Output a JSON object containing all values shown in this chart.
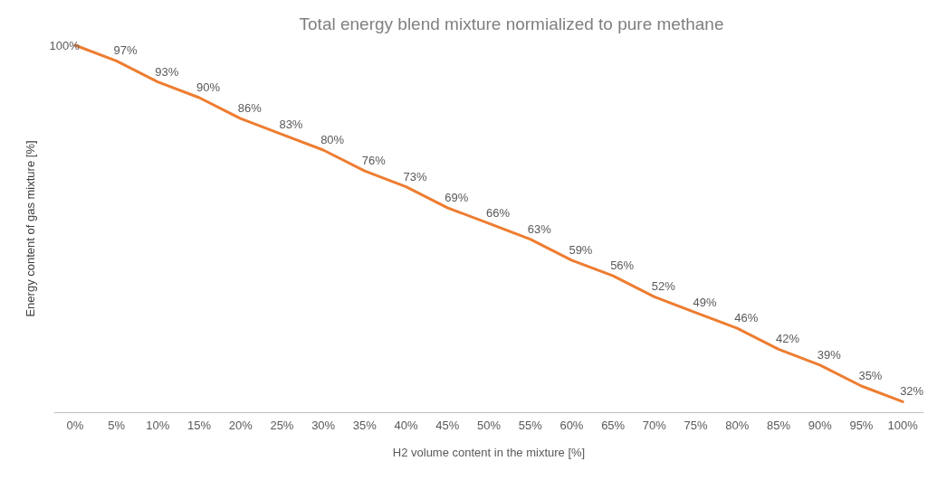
{
  "chart_data": {
    "type": "line",
    "title": "Total energy blend mixture normialized to pure methane",
    "xlabel": "H2 volume content in the mixture [%]",
    "ylabel": "Energy content of gas mixture [%]",
    "categories": [
      "0%",
      "5%",
      "10%",
      "15%",
      "20%",
      "25%",
      "30%",
      "35%",
      "40%",
      "45%",
      "50%",
      "55%",
      "60%",
      "65%",
      "70%",
      "75%",
      "80%",
      "85%",
      "90%",
      "95%",
      "100%"
    ],
    "series": [
      {
        "color": "#ed7d31",
        "values": [
          100,
          97,
          93,
          90,
          86,
          83,
          80,
          76,
          73,
          69,
          66,
          63,
          59,
          56,
          52,
          49,
          46,
          42,
          39,
          35,
          32
        ],
        "value_labels": [
          "100%",
          "97%",
          "93%",
          "90%",
          "86%",
          "83%",
          "80%",
          "76%",
          "73%",
          "69%",
          "66%",
          "63%",
          "59%",
          "56%",
          "52%",
          "49%",
          "46%",
          "42%",
          "39%",
          "35%",
          "32%"
        ]
      }
    ],
    "marker": "none",
    "line_style": "solid",
    "grid": false
  }
}
